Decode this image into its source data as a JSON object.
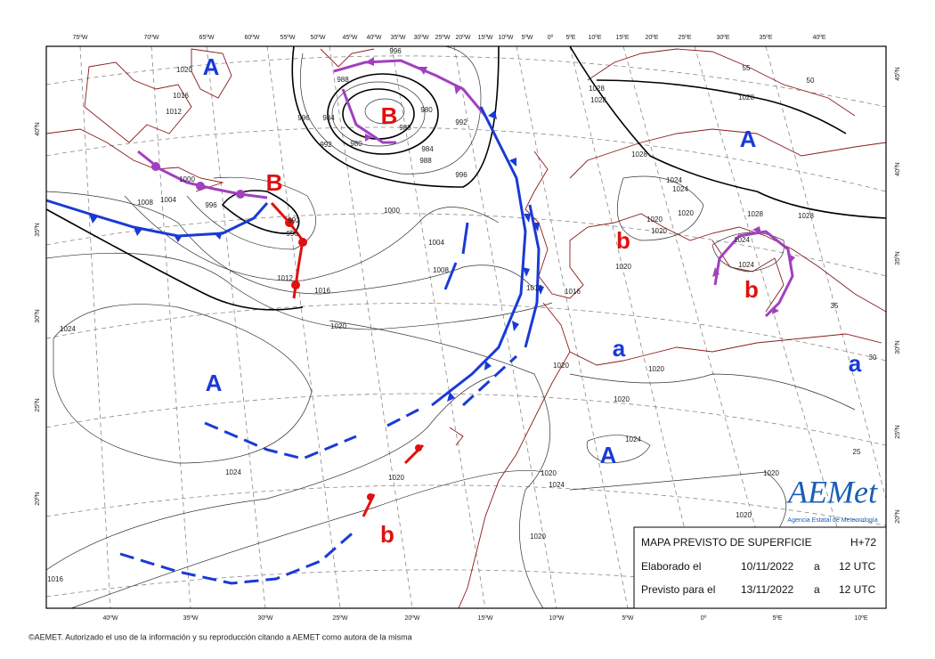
{
  "top_labels": [
    "75ºW",
    "70ºW",
    "65ºW",
    "60ºW",
    "55ºW",
    "50ºW",
    "45ºW",
    "40ºW",
    "35ºW",
    "30ºW",
    "25ºW",
    "20ºW",
    "15ºW",
    "10ºW",
    "5ºW",
    "0º",
    "5ºE",
    "10ºE",
    "15ºE",
    "20ºE",
    "25ºE",
    "30ºE",
    "35ºE",
    "40ºE"
  ],
  "bottom_labels": [
    "40ºW",
    "35ºW",
    "30ºW",
    "25ºW",
    "20ºW",
    "15ºW",
    "10ºW",
    "5ºW",
    "0º",
    "5ºE",
    "10ºE"
  ],
  "left_labels": [
    "40ºN",
    "35ºN",
    "30ºN",
    "25ºN",
    "20ºN"
  ],
  "right_labels": [
    "45ºN",
    "40ºN",
    "35ºN",
    "30ºN",
    "25ºN",
    "20ºN"
  ],
  "centers": [
    "A",
    "B",
    "B",
    "A",
    "b",
    "b",
    "a",
    "a",
    "A",
    "A",
    "b"
  ],
  "isobars": [
    "1020",
    "1016",
    "1012",
    "996",
    "988",
    "984",
    "992",
    "980",
    "996",
    "980",
    "992",
    "988",
    "984",
    "988",
    "996",
    "1000",
    "1004",
    "1008",
    "996",
    "992",
    "996",
    "1012",
    "1016",
    "1000",
    "1004",
    "1008",
    "1012",
    "1016",
    "1020",
    "1024",
    "1028",
    "1028",
    "1028",
    "1028",
    "1024",
    "1024",
    "1020",
    "1020",
    "1020",
    "1020",
    "1028",
    "1028",
    "1024",
    "1024",
    "1020",
    "1020",
    "1020",
    "1024",
    "1024",
    "1020",
    "1020",
    "1024",
    "1020",
    "1016",
    "1020",
    "1020",
    "55",
    "50",
    "35",
    "30",
    "25"
  ],
  "info": {
    "title": "MAPA PREVISTO DE SUPERFICIE",
    "lead": "H+72",
    "issued_label": "Elaborado el",
    "issued_date": "10/11/2022",
    "issued_at": "a",
    "issued_time": "12 UTC",
    "valid_label": "Previsto para el",
    "valid_date": "13/11/2022",
    "valid_at": "a",
    "valid_time": "12 UTC"
  },
  "logo": {
    "name": "AEMet",
    "agency": "Agencia Estatal de Meteorología"
  },
  "footer": "©AEMET. Autorizado el uso de la información y su reproducción citando a AEMET como autora de la misma"
}
